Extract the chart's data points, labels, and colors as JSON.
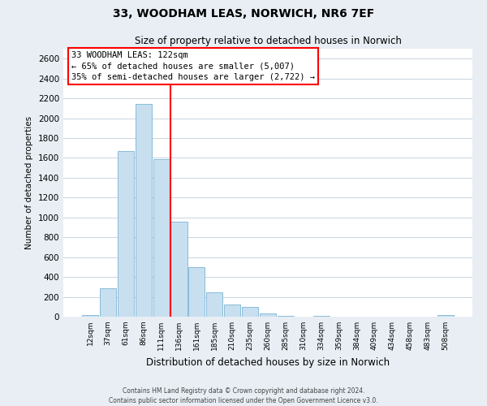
{
  "title": "33, WOODHAM LEAS, NORWICH, NR6 7EF",
  "subtitle": "Size of property relative to detached houses in Norwich",
  "xlabel": "Distribution of detached houses by size in Norwich",
  "ylabel": "Number of detached properties",
  "bar_color": "#c8dff0",
  "bar_edge_color": "#7ab4d4",
  "background_color": "#e8eef4",
  "plot_bg_color": "#ffffff",
  "bin_labels": [
    "12sqm",
    "37sqm",
    "61sqm",
    "86sqm",
    "111sqm",
    "136sqm",
    "161sqm",
    "185sqm",
    "210sqm",
    "235sqm",
    "260sqm",
    "285sqm",
    "310sqm",
    "334sqm",
    "359sqm",
    "384sqm",
    "409sqm",
    "434sqm",
    "458sqm",
    "483sqm",
    "508sqm"
  ],
  "bar_heights": [
    15,
    290,
    1670,
    2140,
    1590,
    960,
    500,
    245,
    120,
    95,
    30,
    5,
    0,
    5,
    0,
    0,
    0,
    0,
    0,
    0,
    15
  ],
  "ylim": [
    0,
    2700
  ],
  "yticks": [
    0,
    200,
    400,
    600,
    800,
    1000,
    1200,
    1400,
    1600,
    1800,
    2000,
    2200,
    2400,
    2600
  ],
  "vline_x": 4.5,
  "annotation_text": "33 WOODHAM LEAS: 122sqm\n← 65% of detached houses are smaller (5,007)\n35% of semi-detached houses are larger (2,722) →",
  "footer_line1": "Contains HM Land Registry data © Crown copyright and database right 2024.",
  "footer_line2": "Contains public sector information licensed under the Open Government Licence v3.0.",
  "grid_color": "#c8d4e0"
}
